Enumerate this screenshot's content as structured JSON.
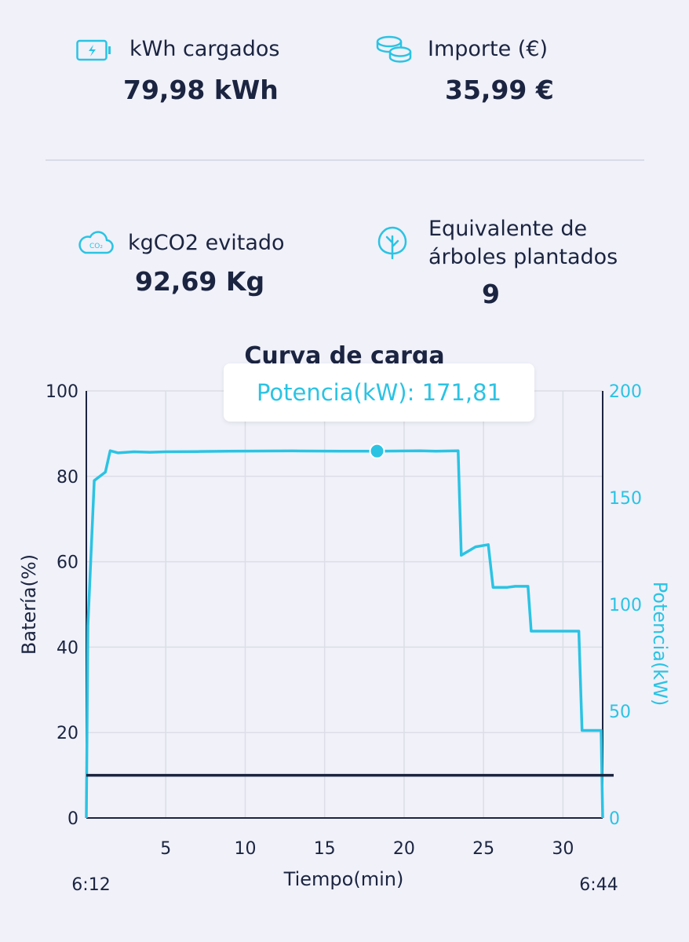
{
  "stats": {
    "kwh": {
      "label": "kWh cargados",
      "value": "79,98 kWh",
      "icon": "battery-charging-icon"
    },
    "importe": {
      "label": "Importe (€)",
      "value": "35,99 €",
      "icon": "coins-icon"
    },
    "co2": {
      "label": "kgCO2 evitado",
      "value": "92,69 Kg",
      "icon": "co2-cloud-icon"
    },
    "arboles": {
      "label_line1": "Equivalente de",
      "label_line2": "árboles plantados",
      "value": "9",
      "icon": "tree-icon"
    }
  },
  "chart_title": "Curva de carga",
  "tooltip": "Potencia(kW): 171,81",
  "colors": {
    "accent": "#2bc3e3",
    "dark": "#1b2440",
    "background": "#f0f1f9",
    "grid": "#dcdde6"
  },
  "chart_data": {
    "type": "line",
    "title": "Curva de carga",
    "xlabel": "Tiempo(min)",
    "ylabel_left": "Batería(%)",
    "ylabel_right": "Potencia(kW)",
    "x_ticks": [
      "5",
      "10",
      "15",
      "20",
      "25",
      "30"
    ],
    "y_left_ticks": [
      "0",
      "20",
      "40",
      "60",
      "80",
      "100"
    ],
    "y_right_ticks": [
      "0",
      "50",
      "100",
      "150",
      "200"
    ],
    "xlim": [
      0,
      32.5
    ],
    "y_left_lim": [
      0,
      100
    ],
    "y_right_lim": [
      0,
      200
    ],
    "start_time": "6:12",
    "end_time": "6:44",
    "grid": true,
    "series": [
      {
        "axis": "right",
        "color": "#2bc3e3",
        "points": [
          [
            0,
            0
          ],
          [
            0.1,
            90
          ],
          [
            0.5,
            158
          ],
          [
            1.2,
            162
          ],
          [
            1.5,
            172
          ],
          [
            2,
            171
          ],
          [
            3,
            171.5
          ],
          [
            4,
            171.3
          ],
          [
            5,
            171.5
          ],
          [
            7,
            171.6
          ],
          [
            9,
            171.8
          ],
          [
            13,
            171.9
          ],
          [
            16,
            171.8
          ],
          [
            18.3,
            171.81
          ],
          [
            21,
            172
          ],
          [
            22,
            171.8
          ],
          [
            23.4,
            172
          ],
          [
            23.6,
            123
          ],
          [
            24.5,
            127
          ],
          [
            25.3,
            128
          ],
          [
            25.6,
            108
          ],
          [
            26.5,
            108
          ],
          [
            27,
            108.5
          ],
          [
            27.8,
            108.5
          ],
          [
            28,
            87.5
          ],
          [
            31,
            87.5
          ],
          [
            31.2,
            41
          ],
          [
            32.4,
            41
          ],
          [
            32.5,
            0
          ]
        ],
        "marker": {
          "x": 18.3,
          "y": 171.81
        }
      },
      {
        "axis": "left",
        "color": "#1b2440",
        "points": [
          [
            0,
            10
          ],
          [
            33,
            10
          ]
        ]
      }
    ]
  }
}
